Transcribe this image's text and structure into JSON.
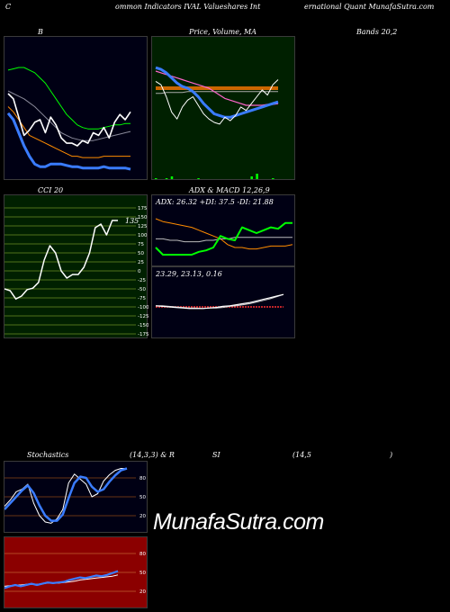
{
  "header": {
    "left": "C",
    "mid_left": "ommon Indicators IVAL Valueshares Int",
    "mid_right": "ernational Quant MunafaSutra.com"
  },
  "row1": {
    "bb_label": "B",
    "pv_label": "Price, Volume, MA",
    "bands_label": "Bands 20,2"
  },
  "row2": {
    "cci_label": "CCI 20",
    "adx_label": "ADX  & MACD 12,26,9",
    "adx_values": "ADX: 26.32  +DI: 37.5 -DI: 21.88",
    "macd_values": "23.29,  23.13,  0.16"
  },
  "row3": {
    "stoch_label": "Stochastics",
    "stoch_params": "(14,3,3) & R",
    "rsi_label": "SI",
    "rsi_params": "(14,5",
    "close_paren": ")"
  },
  "watermark": "MunafaSutra.com",
  "colors": {
    "bb_bg": "#000014",
    "pv_bg": "#002000",
    "cci_bg": "#002000",
    "adx_bg": "#000014",
    "stoch_bg": "#000014",
    "rsi_bg": "#8b0000",
    "blue": "#3a7cff",
    "white": "#ffffff",
    "green": "#00ff00",
    "orange": "#ff8c00",
    "grid_brown": "#8b4513",
    "grid_olive": "#6b8e23"
  },
  "chart_data": [
    {
      "type": "line",
      "panel": "bollinger",
      "series": [
        {
          "values": [
            78,
            79,
            80,
            80,
            78,
            76,
            72,
            68,
            62,
            56,
            50,
            44,
            40,
            36,
            34,
            33,
            33,
            33,
            34,
            35,
            36,
            36,
            37,
            37
          ]
        },
        {
          "values": [
            62,
            60,
            58,
            56,
            53,
            50,
            46,
            42,
            38,
            34,
            30,
            28,
            26,
            25,
            24,
            24,
            24,
            25,
            26,
            27,
            28,
            29,
            30,
            31
          ]
        },
        {
          "values": [
            50,
            46,
            40,
            34,
            28,
            26,
            24,
            22,
            20,
            18,
            16,
            14,
            12,
            12,
            11,
            11,
            11,
            11,
            12,
            12,
            12,
            12,
            12,
            12
          ]
        },
        {
          "values": [
            60,
            56,
            42,
            28,
            32,
            38,
            40,
            30,
            42,
            36,
            26,
            22,
            22,
            20,
            24,
            22,
            30,
            28,
            34,
            26,
            38,
            44,
            40,
            46
          ]
        },
        {
          "values": [
            45,
            40,
            30,
            20,
            12,
            6,
            4,
            4,
            6,
            6,
            6,
            5,
            4,
            4,
            3,
            3,
            3,
            3,
            4,
            3,
            3,
            3,
            3,
            2
          ]
        }
      ]
    },
    {
      "type": "line",
      "panel": "price_volume_ma",
      "series": [
        {
          "values": [
            64,
            62,
            58,
            52,
            46,
            42,
            40,
            36,
            30,
            22,
            16,
            10,
            8,
            6,
            6,
            8,
            10,
            12,
            14,
            16,
            18,
            20,
            22,
            24
          ]
        },
        {
          "values": [
            60,
            58,
            56,
            54,
            52,
            50,
            48,
            46,
            44,
            42,
            40,
            36,
            32,
            28,
            26,
            24,
            22,
            20,
            20,
            20,
            20,
            21,
            21,
            22
          ]
        },
        {
          "values": [
            40,
            40,
            40,
            40,
            40,
            40,
            40,
            40,
            40,
            40,
            40,
            40,
            40,
            40,
            40,
            40,
            40,
            40,
            40,
            40,
            40,
            40,
            40,
            40
          ]
        },
        {
          "values": [
            34,
            34,
            35,
            35,
            35,
            35,
            36,
            36,
            36,
            36,
            36,
            36,
            36,
            36,
            36,
            36,
            36,
            36,
            36,
            36,
            36,
            36,
            36,
            36
          ]
        },
        {
          "values": [
            48,
            44,
            30,
            12,
            4,
            18,
            26,
            30,
            20,
            10,
            4,
            0,
            -2,
            6,
            2,
            8,
            18,
            14,
            22,
            30,
            38,
            32,
            44,
            50
          ]
        },
        {
          "name": "volume",
          "values": [
            1,
            0,
            1,
            3,
            0,
            0,
            0,
            0,
            1,
            0,
            0,
            0,
            0,
            0,
            0,
            0,
            0,
            0,
            3,
            6,
            0,
            0,
            1,
            0
          ]
        }
      ]
    },
    {
      "type": "line",
      "panel": "cci",
      "y_ticks": [
        175,
        150,
        125,
        100,
        75,
        50,
        25,
        0,
        -25,
        -50,
        -75,
        -100,
        -125,
        -150,
        -175
      ],
      "series": [
        {
          "values": [
            -50,
            -55,
            -78,
            -70,
            -52,
            -48,
            -32,
            30,
            70,
            50,
            0,
            -20,
            -10,
            -10,
            10,
            50,
            120,
            130,
            100,
            140,
            140
          ]
        }
      ],
      "last_label": "135"
    },
    {
      "type": "line",
      "panel": "adx",
      "series": [
        {
          "name": "ADX",
          "values": [
            26,
            26,
            25,
            25,
            24,
            24,
            24,
            25,
            25,
            26,
            26,
            27,
            27,
            27,
            27,
            27,
            27,
            27,
            27,
            27
          ]
        },
        {
          "name": "+DI",
          "values": [
            20,
            15,
            15,
            15,
            15,
            15,
            17,
            18,
            20,
            28,
            26,
            25,
            34,
            32,
            30,
            32,
            34,
            33,
            37,
            37
          ]
        },
        {
          "name": "-DI",
          "values": [
            40,
            38,
            37,
            36,
            35,
            34,
            32,
            30,
            28,
            26,
            22,
            20,
            20,
            19,
            19,
            20,
            21,
            21,
            21,
            22
          ]
        }
      ]
    },
    {
      "type": "line",
      "panel": "macd",
      "series": [
        {
          "name": "MACD",
          "values": [
            2,
            1,
            0,
            -1,
            -2,
            -3,
            -3,
            -3,
            -2,
            -1,
            1,
            2,
            4,
            6,
            8,
            11,
            14,
            17,
            20,
            23
          ]
        },
        {
          "name": "Signal",
          "values": [
            2,
            2,
            1,
            0,
            -1,
            -2,
            -2,
            -3,
            -2,
            -2,
            -1,
            1,
            2,
            4,
            6,
            9,
            12,
            15,
            19,
            23
          ]
        }
      ]
    },
    {
      "type": "line",
      "panel": "stochastics",
      "y_ticks": [
        80,
        50,
        20
      ],
      "series": [
        {
          "values": [
            35,
            45,
            58,
            62,
            70,
            40,
            20,
            10,
            8,
            15,
            30,
            72,
            86,
            78,
            70,
            50,
            55,
            75,
            85,
            92,
            95,
            95
          ]
        },
        {
          "values": [
            30,
            40,
            50,
            60,
            68,
            56,
            36,
            20,
            12,
            12,
            22,
            48,
            72,
            82,
            80,
            66,
            58,
            62,
            74,
            84,
            92,
            95
          ]
        }
      ]
    },
    {
      "type": "line",
      "panel": "rsi",
      "y_ticks": [
        80,
        50,
        20
      ],
      "series": [
        {
          "values": [
            25,
            28,
            30,
            28,
            30,
            32,
            30,
            32,
            34,
            33,
            34,
            35,
            38,
            40,
            42,
            41,
            43,
            45,
            44,
            46,
            49,
            52
          ]
        },
        {
          "values": [
            28,
            29,
            30,
            30,
            31,
            31,
            31,
            32,
            33,
            33,
            33,
            34,
            35,
            36,
            38,
            39,
            40,
            41,
            42,
            43,
            44,
            46
          ]
        }
      ]
    }
  ]
}
